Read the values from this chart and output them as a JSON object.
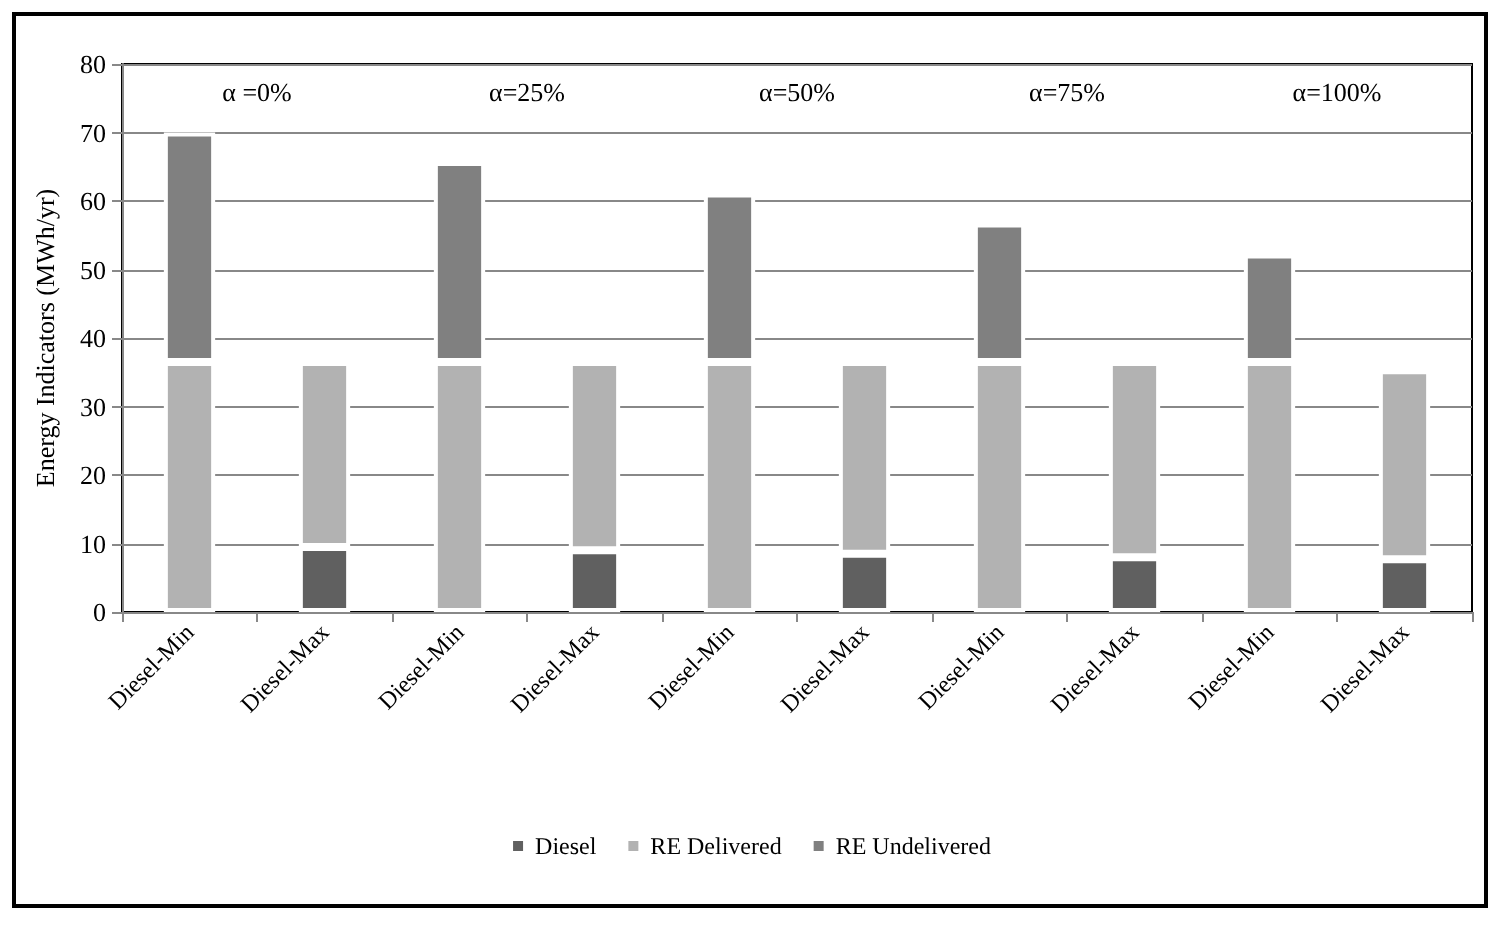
{
  "chart_data": {
    "type": "bar",
    "ylabel": "Energy Indicators (MWh/yr)",
    "categories": [
      "Diesel-Min",
      "Diesel-Max",
      "Diesel-Min",
      "Diesel-Max",
      "Diesel-Min",
      "Diesel-Max",
      "Diesel-Min",
      "Diesel-Max",
      "Diesel-Min",
      "Diesel-Max"
    ],
    "stacked": true,
    "series": [
      {
        "name": "Diesel",
        "color": "#606060",
        "values": [
          null,
          9.5,
          null,
          9.0,
          null,
          8.5,
          null,
          8.0,
          null,
          7.7
        ]
      },
      {
        "name": "RE Delivered",
        "color": "#b2b2b2",
        "values": [
          36.5,
          27.0,
          36.5,
          27.5,
          36.5,
          28.0,
          36.5,
          28.5,
          36.5,
          27.6
        ]
      },
      {
        "name": "RE Undelivered",
        "color": "#808080",
        "values": [
          33.5,
          null,
          29.2,
          null,
          24.6,
          null,
          20.2,
          null,
          15.7,
          null
        ]
      }
    ],
    "annotations": [
      "α =0%",
      "α=25%",
      "α=50%",
      "α=75%",
      "α=100%"
    ],
    "ylim": [
      0,
      80
    ],
    "yticks": [
      0,
      10,
      20,
      30,
      40,
      50,
      60,
      70,
      80
    ],
    "grid": "y",
    "legend": "bottom"
  }
}
